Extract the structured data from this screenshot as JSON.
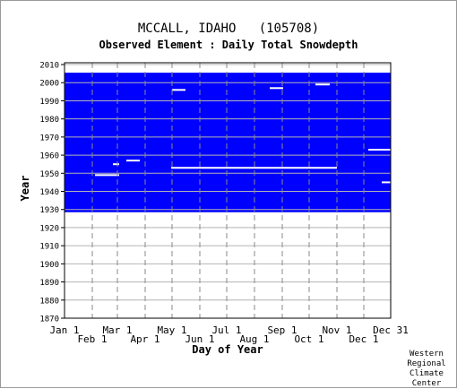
{
  "header": {
    "title": "MCCALL, IDAHO   (105708)",
    "subtitle": "Observed Element : Daily Total Snowdepth"
  },
  "footer": {
    "credit_lines": [
      "Western",
      "Regional",
      "Climate",
      "Center"
    ]
  },
  "chart_data": {
    "type": "heatmap",
    "title": "MCCALL, IDAHO   (105708)",
    "subtitle": "Observed Element : Daily Total Snowdepth",
    "xlabel": "Day of Year",
    "ylabel": "Year",
    "x_ticks_top_row": [
      "Jan 1",
      "Mar 1",
      "May 1",
      "Jul 1",
      "Sep 1",
      "Nov 1",
      "Dec 31"
    ],
    "x_ticks_bottom_row": [
      "Feb 1",
      "Apr 1",
      "Jun 1",
      "Aug 1",
      "Oct 1",
      "Dec 1"
    ],
    "x_tick_days": [
      1,
      32,
      60,
      91,
      121,
      152,
      182,
      213,
      244,
      274,
      305,
      335,
      365
    ],
    "xlim": [
      1,
      365
    ],
    "ylim": [
      1870,
      2011
    ],
    "y_ticks": [
      1870,
      1880,
      1890,
      1900,
      1910,
      1920,
      1930,
      1940,
      1950,
      1960,
      1970,
      1980,
      1990,
      2000,
      2010
    ],
    "grid": true,
    "data_color": "#0000ff",
    "missing_color": "#ffffff",
    "observed_period": [
      1929,
      2005
    ],
    "missing_segments": [
      {
        "year": 1996,
        "start_day": 121,
        "end_day": 136
      },
      {
        "year": 1997,
        "start_day": 230,
        "end_day": 245
      },
      {
        "year": 1999,
        "start_day": 281,
        "end_day": 297
      },
      {
        "year": 1963,
        "start_day": 340,
        "end_day": 365
      },
      {
        "year": 1953,
        "start_day": 120,
        "end_day": 305
      },
      {
        "year": 1949,
        "start_day": 35,
        "end_day": 62
      },
      {
        "year": 1957,
        "start_day": 70,
        "end_day": 85
      },
      {
        "year": 1955,
        "start_day": 55,
        "end_day": 62
      },
      {
        "year": 1945,
        "start_day": 355,
        "end_day": 365
      }
    ]
  }
}
